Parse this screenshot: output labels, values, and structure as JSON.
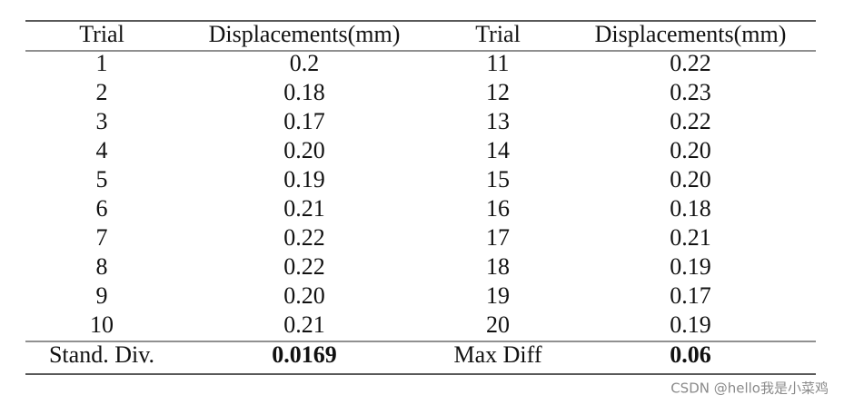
{
  "table": {
    "header": [
      "Trial",
      "Displacements(mm)",
      "Trial",
      "Displacements(mm)"
    ],
    "rows": [
      [
        "1",
        "0.2",
        "11",
        "0.22"
      ],
      [
        "2",
        "0.18",
        "12",
        "0.23"
      ],
      [
        "3",
        "0.17",
        "13",
        "0.22"
      ],
      [
        "4",
        "0.20",
        "14",
        "0.20"
      ],
      [
        "5",
        "0.19",
        "15",
        "0.20"
      ],
      [
        "6",
        "0.21",
        "16",
        "0.18"
      ],
      [
        "7",
        "0.22",
        "17",
        "0.21"
      ],
      [
        "8",
        "0.22",
        "18",
        "0.19"
      ],
      [
        "9",
        "0.20",
        "19",
        "0.17"
      ],
      [
        "10",
        "0.21",
        "20",
        "0.19"
      ]
    ],
    "footer": [
      "Stand. Div.",
      "0.0169",
      "Max Diff",
      "0.06"
    ]
  },
  "watermark": "CSDN @hello我是小菜鸡"
}
